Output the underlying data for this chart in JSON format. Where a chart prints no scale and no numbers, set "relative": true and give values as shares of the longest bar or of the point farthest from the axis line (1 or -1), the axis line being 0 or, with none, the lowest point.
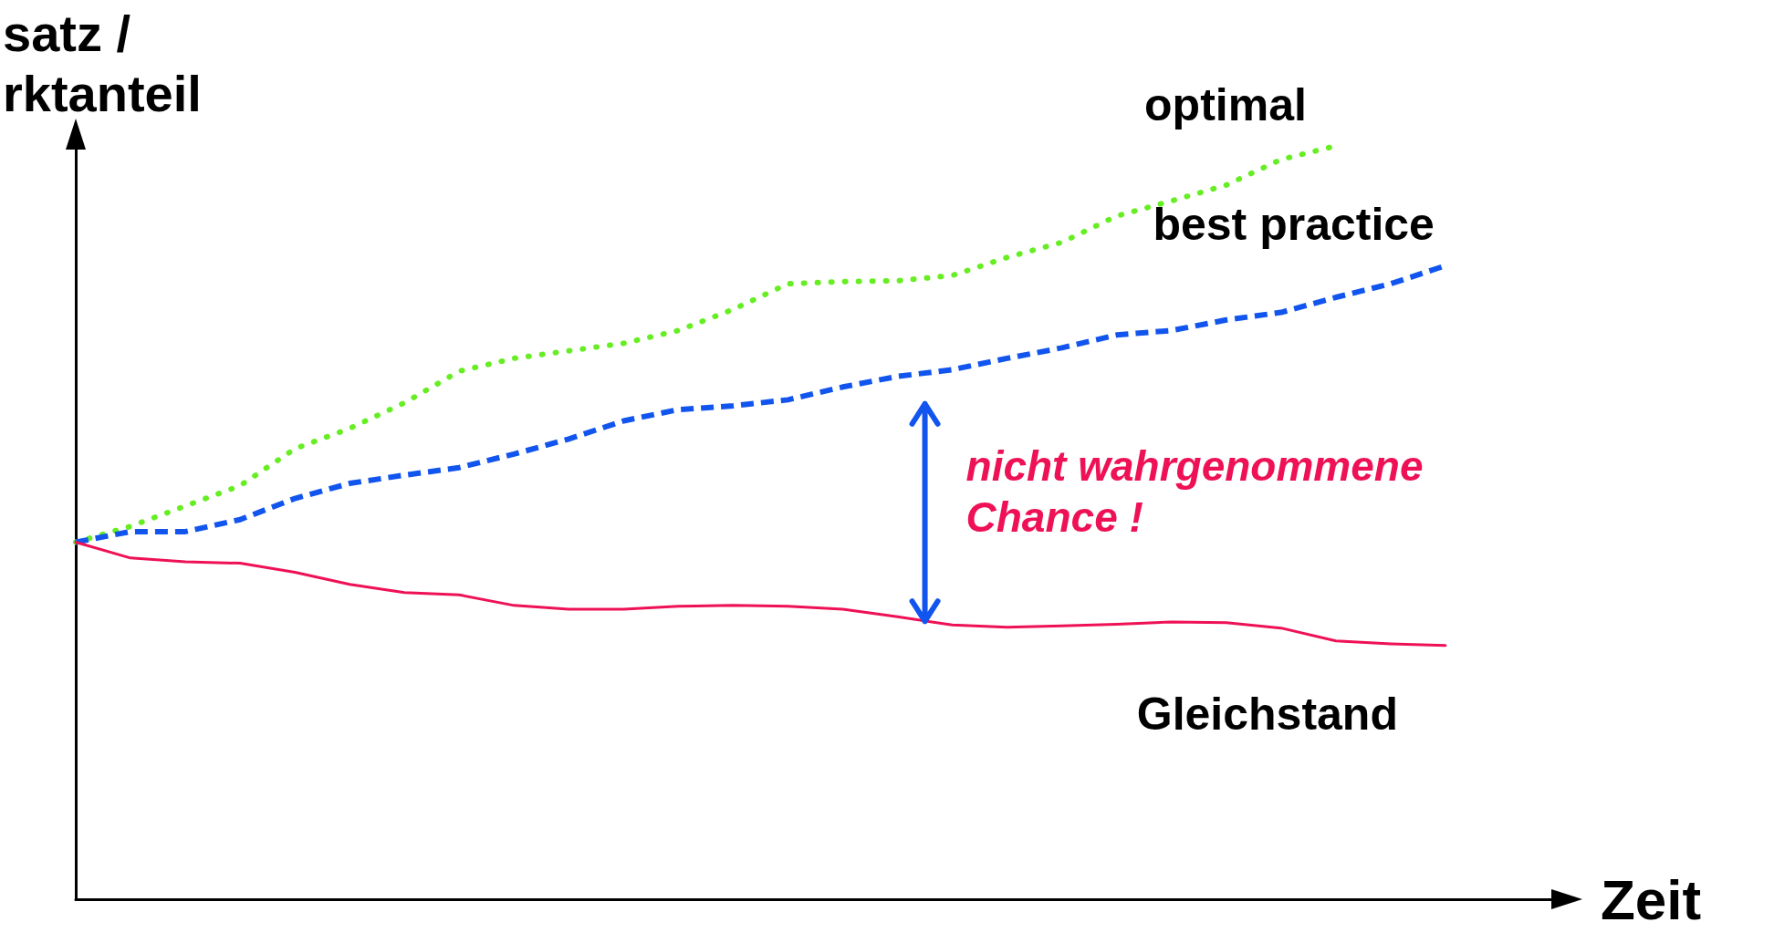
{
  "chart_data": {
    "type": "line",
    "relative": true,
    "xlabel": "Zeit",
    "ylabel": "satz /\nrktanteil",
    "categories": [
      null,
      null,
      null,
      null,
      null,
      null,
      null,
      null,
      null,
      null,
      null,
      null,
      null,
      null,
      null,
      null,
      null,
      null,
      null,
      null,
      null,
      null,
      null,
      null,
      null,
      null,
      null,
      null
    ],
    "series": [
      {
        "name": "optimal",
        "color": "#66ee22",
        "line_style": "dotted",
        "values": [
          0.474,
          0.495,
          0.522,
          0.549,
          0.598,
          0.625,
          0.659,
          0.701,
          0.718,
          0.728,
          0.738,
          0.755,
          0.783,
          0.817,
          0.82,
          0.821,
          0.828,
          0.852,
          0.872,
          0.907,
          0.927,
          0.948,
          0.982,
          1,
          null,
          null,
          null,
          null
        ]
      },
      {
        "name": "best practice",
        "color": "#1155ee",
        "line_style": "dashed",
        "values": [
          0.474,
          0.488,
          0.488,
          0.504,
          0.532,
          0.552,
          0.563,
          0.573,
          0.591,
          0.611,
          0.635,
          0.65,
          0.655,
          0.663,
          0.68,
          0.694,
          0.703,
          0.718,
          0.732,
          0.749,
          0.755,
          0.769,
          0.779,
          0.799,
          0.817,
          0.841,
          null,
          null
        ]
      },
      {
        "name": "Gleichstand",
        "color": "#ee1155",
        "line_style": "solid",
        "values": [
          0.474,
          0.453,
          0.448,
          0.446,
          0.434,
          0.418,
          0.407,
          0.404,
          0.39,
          0.385,
          0.385,
          0.389,
          0.39,
          0.389,
          0.385,
          0.375,
          0.364,
          0.361,
          0.363,
          0.365,
          0.368,
          0.367,
          0.36,
          0.343,
          0.339,
          0.337,
          null,
          null
        ]
      }
    ],
    "annotations": [
      "nicht wahrgenommene\nChance !"
    ],
    "grid": false,
    "legend": false,
    "marker": "none"
  }
}
